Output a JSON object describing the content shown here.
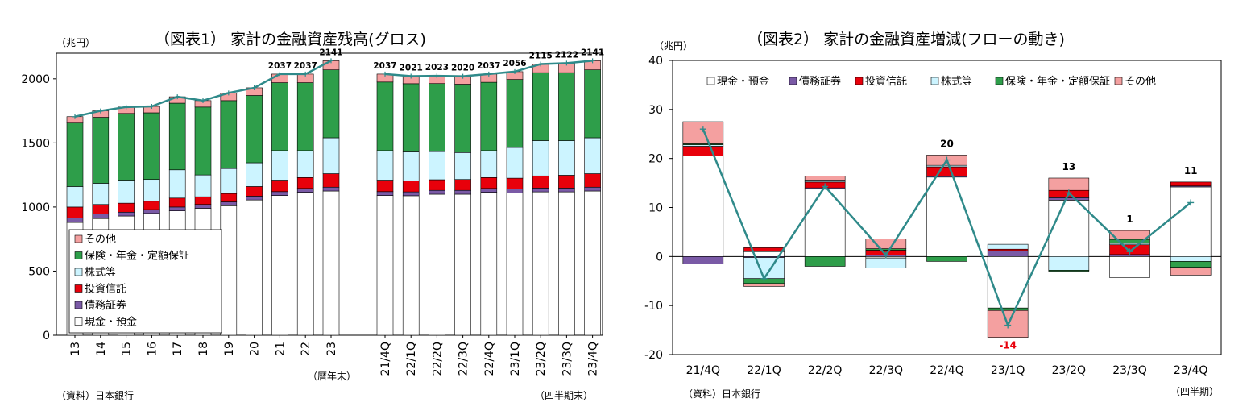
{
  "chart_data": [
    {
      "type": "bar",
      "stacked": true,
      "title": "（図表1） 家計の金融資産残高(グロス)",
      "unit_label": "（兆円）",
      "source": "（資料）日本銀行",
      "group_labels": [
        "（暦年末）",
        "（四半期末）"
      ],
      "categories": [
        "13",
        "14",
        "15",
        "16",
        "17",
        "18",
        "19",
        "20",
        "21",
        "22",
        "23",
        "21/4Q",
        "22/1Q",
        "22/2Q",
        "22/3Q",
        "22/4Q",
        "23/1Q",
        "23/2Q",
        "23/3Q",
        "23/4Q"
      ],
      "ylim": [
        0,
        2200
      ],
      "yticks": [
        0,
        500,
        1000,
        1500,
        2000
      ],
      "grid": false,
      "legend": "bottom-left",
      "series": [
        {
          "name": "現金・預金",
          "color": "#ffffff",
          "values": [
            880,
            910,
            930,
            950,
            970,
            990,
            1010,
            1055,
            1090,
            1115,
            1125,
            1090,
            1088,
            1100,
            1100,
            1115,
            1110,
            1118,
            1118,
            1125
          ]
        },
        {
          "name": "債務証券",
          "color": "#7a5aa6",
          "values": [
            35,
            35,
            30,
            30,
            30,
            30,
            30,
            30,
            30,
            30,
            30,
            30,
            30,
            30,
            30,
            30,
            30,
            30,
            30,
            30
          ]
        },
        {
          "name": "投資信託",
          "color": "#e8000b",
          "values": [
            85,
            75,
            70,
            65,
            70,
            60,
            65,
            75,
            90,
            85,
            105,
            90,
            87,
            83,
            85,
            85,
            85,
            95,
            100,
            105
          ]
        },
        {
          "name": "株式等",
          "color": "#ccf4ff",
          "values": [
            160,
            165,
            180,
            170,
            220,
            170,
            195,
            185,
            230,
            210,
            280,
            230,
            225,
            220,
            210,
            210,
            240,
            275,
            270,
            280
          ]
        },
        {
          "name": "保険・年金・定額保証",
          "color": "#2e9e4a",
          "values": [
            495,
            515,
            520,
            520,
            520,
            530,
            530,
            525,
            530,
            530,
            530,
            535,
            532,
            530,
            533,
            533,
            530,
            530,
            530,
            530
          ]
        },
        {
          "name": "その他",
          "color": "#f4a0a0",
          "values": [
            50,
            50,
            50,
            50,
            50,
            50,
            60,
            60,
            67,
            67,
            71,
            62,
            59,
            60,
            62,
            64,
            61,
            67,
            74,
            71
          ]
        }
      ],
      "totals": [
        1705,
        1750,
        1780,
        1785,
        1860,
        1830,
        1890,
        1930,
        2037,
        2037,
        2141,
        2037,
        2021,
        2023,
        2020,
        2037,
        2056,
        2115,
        2122,
        2141
      ],
      "total_labels": [
        "",
        "",
        "",
        "",
        "",
        "",
        "",
        "",
        "2037",
        "2037",
        "2141",
        "2037",
        "2021",
        "2023",
        "2020",
        "2037",
        "2056",
        "2115",
        "2122",
        "2141"
      ]
    },
    {
      "type": "bar",
      "stacked": true,
      "title": "（図表2） 家計の金融資産増減(フローの動き)",
      "unit_label": "（兆円）",
      "source": "（資料）日本銀行",
      "group_labels": [
        "（四半期）"
      ],
      "categories": [
        "21/4Q",
        "22/1Q",
        "22/2Q",
        "22/3Q",
        "22/4Q",
        "23/1Q",
        "23/2Q",
        "23/3Q",
        "23/4Q"
      ],
      "ylim": [
        -20,
        40
      ],
      "yticks": [
        -20,
        -10,
        0,
        10,
        20,
        30,
        40
      ],
      "grid": false,
      "legend": "top",
      "series": [
        {
          "name": "現金・預金",
          "color": "#ffffff",
          "values": [
            20.5,
            1.0,
            13.8,
            -0.3,
            16.2,
            -10.5,
            11.5,
            -4.3,
            14.2
          ]
        },
        {
          "name": "債務証券",
          "color": "#7a5aa6",
          "values": [
            -1.5,
            -0.2,
            0.2,
            0.3,
            0.2,
            1.2,
            0.5,
            0.4,
            0.2
          ]
        },
        {
          "name": "投資信託",
          "color": "#e8000b",
          "values": [
            2.0,
            0.8,
            1.2,
            1.0,
            1.9,
            0.3,
            1.5,
            2.0,
            0.8
          ]
        },
        {
          "name": "株式等",
          "color": "#ccf4ff",
          "values": [
            0.3,
            -4.3,
            0.4,
            -2.0,
            0.3,
            1.0,
            -2.8,
            0.3,
            -1.0
          ]
        },
        {
          "name": "保険・年金・定額保証",
          "color": "#2e9e4a",
          "values": [
            0.2,
            -1.0,
            -2.0,
            0.3,
            -1.0,
            -0.5,
            -0.2,
            0.8,
            -1.2
          ]
        },
        {
          "name": "その他",
          "color": "#f4a0a0",
          "values": [
            4.5,
            -0.6,
            0.8,
            2.0,
            2.1,
            -5.5,
            2.5,
            1.8,
            -1.6
          ]
        }
      ],
      "totals": [
        26,
        -4.5,
        14.3,
        0.3,
        19.7,
        -14,
        13,
        1,
        11
      ],
      "total_labels": [
        "",
        "",
        "",
        "",
        "20",
        "-14",
        "13",
        "1",
        "11"
      ],
      "total_label_colors": [
        "#000",
        "#000",
        "#000",
        "#000",
        "#000",
        "#e8000b",
        "#000",
        "#000",
        "#000"
      ]
    }
  ]
}
